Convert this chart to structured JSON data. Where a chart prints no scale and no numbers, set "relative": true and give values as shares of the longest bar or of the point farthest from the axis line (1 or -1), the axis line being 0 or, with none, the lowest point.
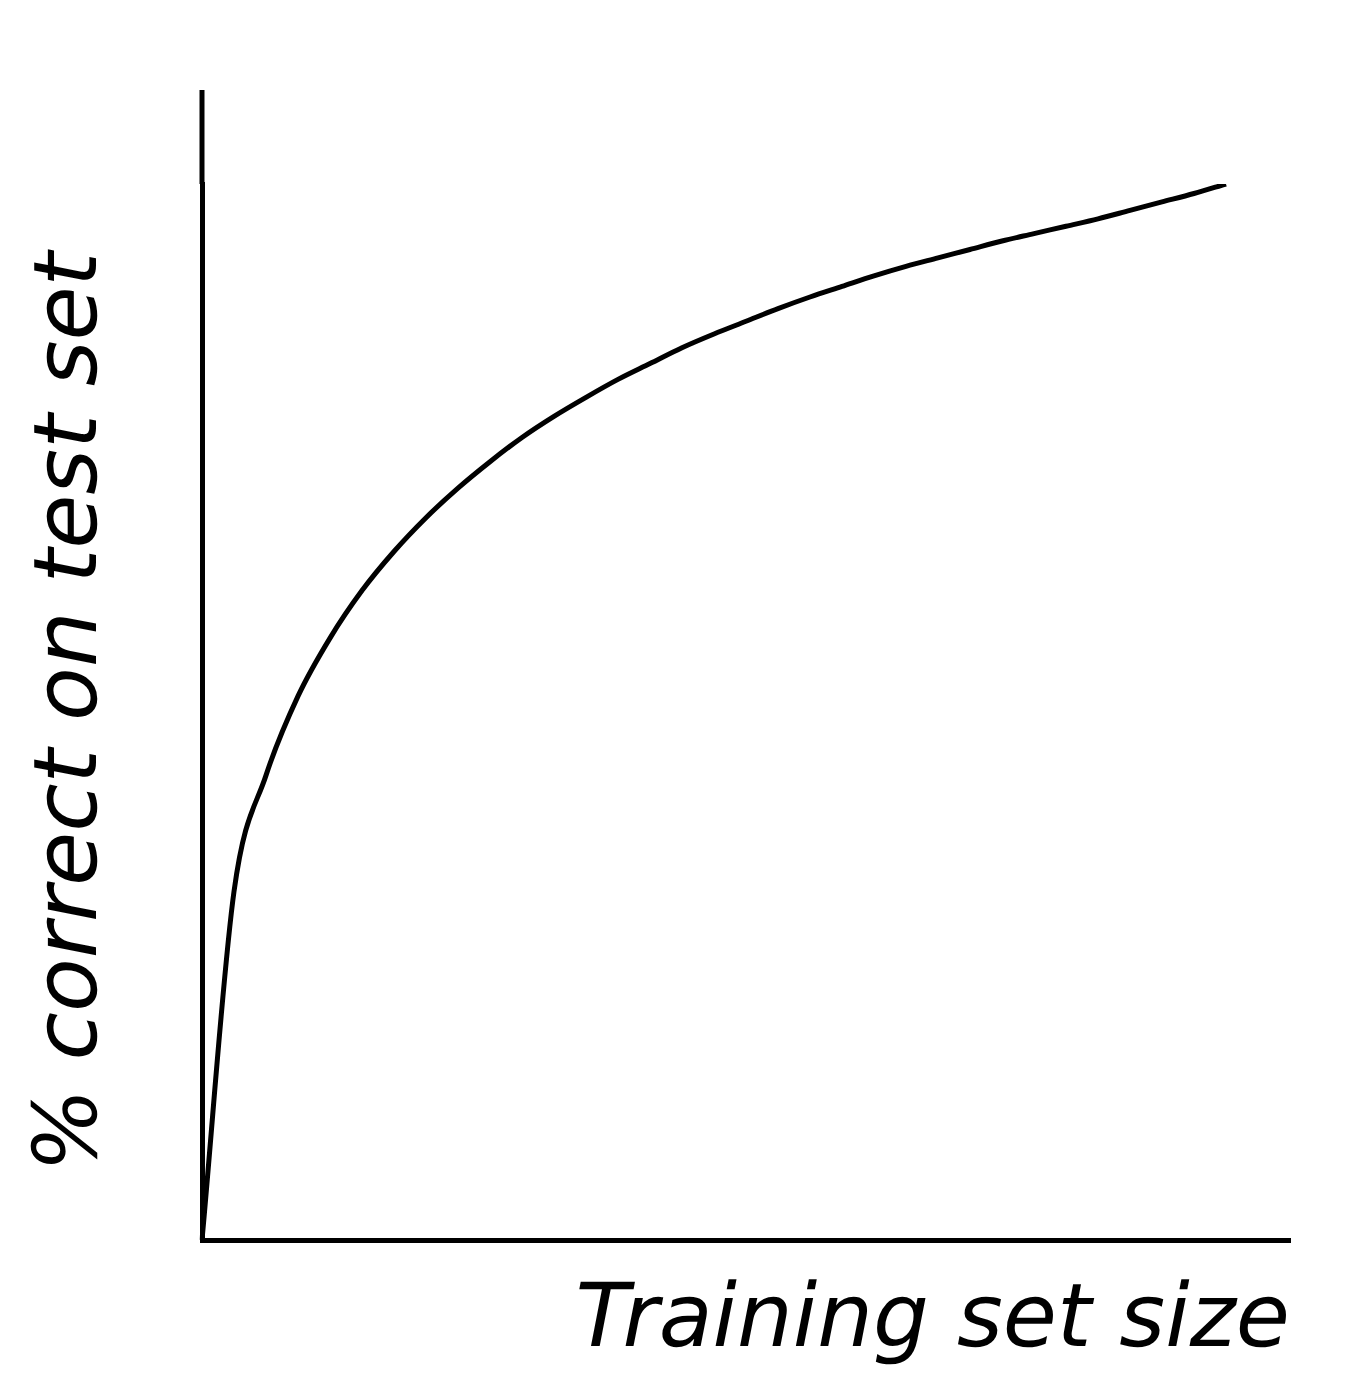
{
  "chart_data": {
    "type": "line",
    "relative": true,
    "xlabel": "Training set size",
    "ylabel": "% correct on test set",
    "categories": [
      null,
      null,
      null,
      null,
      null,
      null,
      null,
      null,
      null,
      null,
      null,
      null,
      null,
      null,
      null,
      null,
      null,
      null,
      null,
      null,
      null,
      null,
      null,
      null,
      null,
      null,
      null,
      null,
      null,
      null,
      null,
      null,
      null,
      null,
      null
    ],
    "series": [
      {
        "color": "#000000",
        "values": [
          0,
          0.33,
          0.44,
          0.515,
          0.57,
          0.615,
          0.652,
          0.684,
          0.712,
          0.737,
          0.76,
          0.78,
          0.798,
          0.815,
          0.83,
          0.845,
          0.858,
          0.87,
          0.882,
          0.893,
          0.903,
          0.913,
          0.922,
          0.93,
          0.938,
          0.946,
          0.953,
          0.96,
          0.967,
          0.975,
          0.983,
          0.991,
          1,
          null,
          null
        ]
      }
    ],
    "grid": false,
    "legend": false,
    "marker": "none",
    "line_style": "solid"
  }
}
